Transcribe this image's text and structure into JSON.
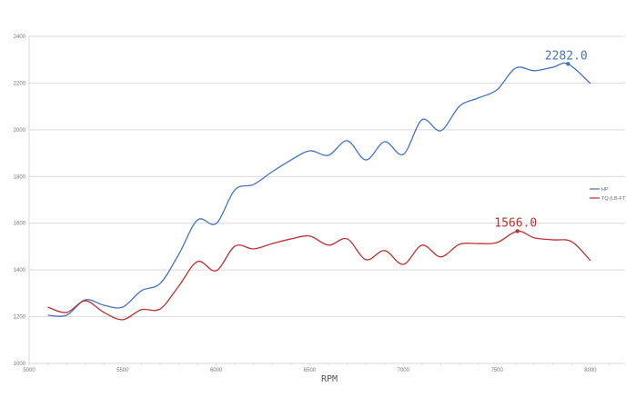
{
  "chart_data": {
    "type": "line",
    "title": "",
    "xlabel": "RPM",
    "ylabel": "",
    "xlim": [
      5000,
      8185
    ],
    "ylim": [
      1000,
      2400
    ],
    "x_ticks": [
      5000,
      5500,
      6000,
      6500,
      7000,
      7500,
      8000
    ],
    "y_ticks": [
      1000,
      1200,
      1400,
      1600,
      1800,
      2000,
      2200,
      2400
    ],
    "grid": "horizontal",
    "legend_position": "right",
    "series": [
      {
        "name": "HP",
        "color": "#4472c4",
        "x": [
          5100,
          5200,
          5300,
          5400,
          5500,
          5600,
          5700,
          5800,
          5900,
          6000,
          6100,
          6200,
          6300,
          6400,
          6500,
          6600,
          6700,
          6800,
          6900,
          7000,
          7100,
          7200,
          7300,
          7400,
          7500,
          7600,
          7700,
          7800,
          7880,
          8000
        ],
        "y": [
          1206,
          1206,
          1272,
          1249,
          1241,
          1311,
          1342,
          1467,
          1614,
          1599,
          1743,
          1766,
          1821,
          1871,
          1910,
          1891,
          1953,
          1871,
          1949,
          1895,
          2043,
          1996,
          2101,
          2136,
          2171,
          2264,
          2253,
          2268,
          2282,
          2198
        ],
        "peak": {
          "x": 7880,
          "y": 2282,
          "label": "2282.0"
        }
      },
      {
        "name": "TQ (LB-FT)",
        "color": "#c0302f",
        "x": [
          5100,
          5200,
          5300,
          5400,
          5500,
          5600,
          5700,
          5800,
          5900,
          6000,
          6100,
          6200,
          6300,
          6400,
          6500,
          6600,
          6700,
          6800,
          6900,
          7000,
          7100,
          7200,
          7300,
          7400,
          7500,
          7610,
          7700,
          7800,
          7900,
          8000
        ],
        "y": [
          1241,
          1218,
          1268,
          1218,
          1187,
          1230,
          1233,
          1331,
          1436,
          1397,
          1502,
          1490,
          1513,
          1533,
          1545,
          1506,
          1533,
          1444,
          1483,
          1424,
          1506,
          1456,
          1510,
          1513,
          1517,
          1566,
          1537,
          1529,
          1521,
          1440
        ],
        "peak": {
          "x": 7610,
          "y": 1566,
          "label": "1566.0"
        }
      }
    ]
  }
}
